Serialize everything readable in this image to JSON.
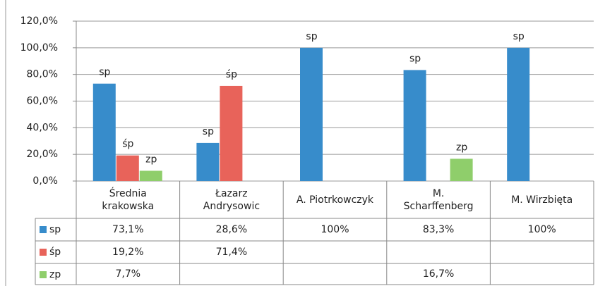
{
  "chart_data": {
    "type": "bar",
    "categories": [
      "Średnia\nkrakowska",
      "Łazarz\nAndrysowic",
      "A. Piotrkowczyk",
      "M.\nScharffenberg",
      "M. Wirzbięta"
    ],
    "series": [
      {
        "name": "sp",
        "color": "#378ccb",
        "values": [
          73.1,
          28.6,
          100,
          83.3,
          100
        ],
        "value_labels": [
          "73,1%",
          "28,6%",
          "100%",
          "83,3%",
          "100%"
        ]
      },
      {
        "name": "śp",
        "color": "#e8635a",
        "values": [
          19.2,
          71.4,
          null,
          null,
          null
        ],
        "value_labels": [
          "19,2%",
          "71,4%",
          null,
          null,
          null
        ]
      },
      {
        "name": "zp",
        "color": "#8fce6b",
        "values": [
          7.7,
          null,
          null,
          16.7,
          null
        ],
        "value_labels": [
          "7,7%",
          null,
          null,
          "16,7%",
          null
        ]
      }
    ],
    "ylim": [
      0,
      120
    ],
    "yticks": [
      {
        "value": 0,
        "label": "0,0%"
      },
      {
        "value": 20,
        "label": "20,0%"
      },
      {
        "value": 40,
        "label": "40,0%"
      },
      {
        "value": 60,
        "label": "60,0%"
      },
      {
        "value": 80,
        "label": "80,0%"
      },
      {
        "value": 100,
        "label": "100,0%"
      },
      {
        "value": 120,
        "label": "120,0%"
      }
    ],
    "grid": true
  }
}
